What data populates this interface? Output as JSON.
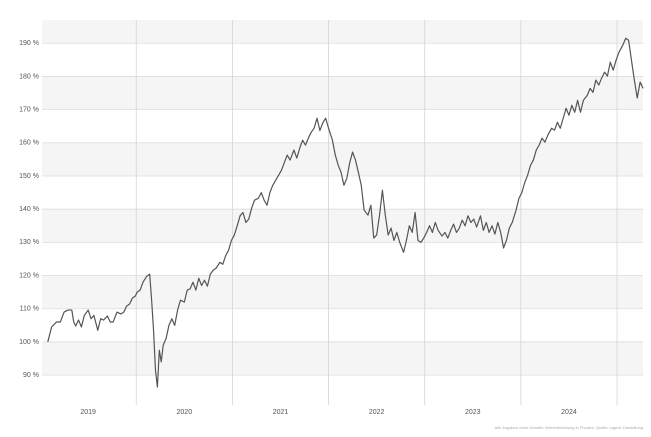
{
  "chart_data": {
    "type": "line",
    "source": "Alle Angaben ohne Gewähr. Wertentwicklung in Prozent, Quelle: eigene Darstellung",
    "xlim": [
      2019.02,
      2025.27
    ],
    "ylim": [
      81,
      197
    ],
    "yticks": [
      {
        "value": 90,
        "label": "90 %"
      },
      {
        "value": 100,
        "label": "100 %"
      },
      {
        "value": 110,
        "label": "110 %"
      },
      {
        "value": 120,
        "label": "120 %"
      },
      {
        "value": 130,
        "label": "130 %"
      },
      {
        "value": 140,
        "label": "140 %"
      },
      {
        "value": 150,
        "label": "150 %"
      },
      {
        "value": 160,
        "label": "160 %"
      },
      {
        "value": 170,
        "label": "170 %"
      },
      {
        "value": 180,
        "label": "180 %"
      },
      {
        "value": 190,
        "label": "190 %"
      }
    ],
    "xticks": [
      {
        "value": 2019.5,
        "label": "2019"
      },
      {
        "value": 2020.5,
        "label": "2020"
      },
      {
        "value": 2021.5,
        "label": "2021"
      },
      {
        "value": 2022.5,
        "label": "2022"
      },
      {
        "value": 2023.5,
        "label": "2023"
      },
      {
        "value": 2024.5,
        "label": "2024"
      }
    ],
    "xgrid": [
      2020,
      2021,
      2022,
      2023,
      2024,
      2025
    ],
    "grid": true,
    "color": "#555555",
    "x": [
      2019.08,
      2019.12,
      2019.17,
      2019.21,
      2019.25,
      2019.29,
      2019.33,
      2019.35,
      2019.37,
      2019.4,
      2019.43,
      2019.46,
      2019.5,
      2019.53,
      2019.56,
      2019.6,
      2019.63,
      2019.66,
      2019.7,
      2019.73,
      2019.76,
      2019.8,
      2019.84,
      2019.87,
      2019.9,
      2019.93,
      2019.96,
      2019.99,
      2020.01,
      2020.04,
      2020.07,
      2020.11,
      2020.14,
      2020.16,
      2020.18,
      2020.2,
      2020.22,
      2020.24,
      2020.26,
      2020.28,
      2020.31,
      2020.34,
      2020.37,
      2020.4,
      2020.43,
      2020.46,
      2020.5,
      2020.53,
      2020.56,
      2020.59,
      2020.62,
      2020.65,
      2020.68,
      2020.71,
      2020.74,
      2020.77,
      2020.8,
      2020.83,
      2020.87,
      2020.9,
      2020.93,
      2020.96,
      2020.99,
      2021.02,
      2021.05,
      2021.08,
      2021.11,
      2021.14,
      2021.17,
      2021.2,
      2021.23,
      2021.27,
      2021.3,
      2021.33,
      2021.36,
      2021.39,
      2021.42,
      2021.45,
      2021.48,
      2021.51,
      2021.54,
      2021.57,
      2021.6,
      2021.64,
      2021.67,
      2021.7,
      2021.73,
      2021.76,
      2021.79,
      2021.82,
      2021.85,
      2021.88,
      2021.91,
      2021.94,
      2021.97,
      2022.0,
      2022.04,
      2022.07,
      2022.1,
      2022.13,
      2022.16,
      2022.19,
      2022.22,
      2022.25,
      2022.28,
      2022.31,
      2022.34,
      2022.37,
      2022.41,
      2022.44,
      2022.47,
      2022.5,
      2022.53,
      2022.56,
      2022.59,
      2022.62,
      2022.65,
      2022.68,
      2022.71,
      2022.74,
      2022.78,
      2022.81,
      2022.84,
      2022.87,
      2022.9,
      2022.93,
      2022.96,
      2022.99,
      2023.02,
      2023.05,
      2023.08,
      2023.11,
      2023.14,
      2023.18,
      2023.21,
      2023.24,
      2023.27,
      2023.3,
      2023.33,
      2023.36,
      2023.39,
      2023.42,
      2023.45,
      2023.48,
      2023.51,
      2023.54,
      2023.58,
      2023.61,
      2023.64,
      2023.67,
      2023.7,
      2023.73,
      2023.76,
      2023.79,
      2023.82,
      2023.85,
      2023.88,
      2023.91,
      2023.95,
      2023.98,
      2024.01,
      2024.04,
      2024.07,
      2024.1,
      2024.13,
      2024.16,
      2024.19,
      2024.22,
      2024.25,
      2024.28,
      2024.32,
      2024.35,
      2024.38,
      2024.41,
      2024.44,
      2024.47,
      2024.5,
      2024.53,
      2024.56,
      2024.59,
      2024.62,
      2024.65,
      2024.69,
      2024.72,
      2024.75,
      2024.78,
      2024.81,
      2024.84,
      2024.87,
      2024.9,
      2024.93,
      2024.96,
      2024.99,
      2025.02,
      2025.06,
      2025.09,
      2025.12,
      2025.15,
      2025.18,
      2025.21,
      2025.24,
      2025.27
    ],
    "values": [
      100,
      104.5,
      106,
      106,
      109,
      109.6,
      109.6,
      106,
      104.8,
      106.6,
      104.5,
      108,
      109.6,
      107,
      108,
      103.5,
      107,
      106.6,
      107.8,
      106,
      106,
      109,
      108.4,
      109,
      110.8,
      111.4,
      113.2,
      113.8,
      115,
      115.6,
      118,
      119.8,
      120.4,
      112.6,
      103.5,
      91.5,
      86.4,
      97.5,
      94,
      99,
      101,
      105,
      107,
      105,
      109.6,
      112.6,
      112,
      115.6,
      116,
      118,
      115.6,
      119.2,
      117,
      118.6,
      116.8,
      120.4,
      121.6,
      122.2,
      124,
      123.4,
      126,
      127.6,
      130.6,
      132.2,
      135,
      138,
      139,
      136,
      137,
      140.3,
      142.7,
      143.3,
      145,
      142.7,
      141.2,
      145,
      147.2,
      148.7,
      150.2,
      151.7,
      154,
      156.3,
      154.8,
      157.8,
      155.4,
      158.4,
      160.8,
      159.3,
      161.4,
      163.2,
      164.4,
      167.4,
      163.7,
      166,
      167.4,
      164.4,
      160.8,
      156.3,
      153.3,
      151.1,
      147.2,
      149.3,
      154,
      157.2,
      154.8,
      151.1,
      147.2,
      139.7,
      138.2,
      141.2,
      131.3,
      132.2,
      138.2,
      145.7,
      138.2,
      132.2,
      134.3,
      130.6,
      133,
      130,
      127,
      130.6,
      135,
      133,
      139,
      130.6,
      130,
      131.3,
      133,
      135,
      133,
      136,
      133.6,
      131.9,
      133,
      131.3,
      133.6,
      135.5,
      133,
      134.3,
      136.7,
      135,
      138,
      136,
      137,
      134.6,
      138,
      133.6,
      136,
      133,
      135,
      132.5,
      136,
      133,
      128.3,
      130.6,
      134.3,
      136,
      139.7,
      143.3,
      145,
      148,
      150.2,
      153.2,
      154.8,
      157.8,
      159.3,
      161.4,
      160.2,
      162.3,
      164.4,
      163.8,
      166.2,
      164.4,
      167.4,
      170.4,
      168.3,
      171.3,
      169.2,
      172.8,
      169.2,
      172.8,
      174.3,
      176.4,
      175.2,
      178.9,
      177.4,
      179.5,
      181.3,
      180.1,
      184.3,
      181.9,
      184.9,
      187.3,
      189.4,
      191.5,
      190.9,
      184.9,
      178.9,
      173.5,
      178.3,
      176.4
    ]
  }
}
